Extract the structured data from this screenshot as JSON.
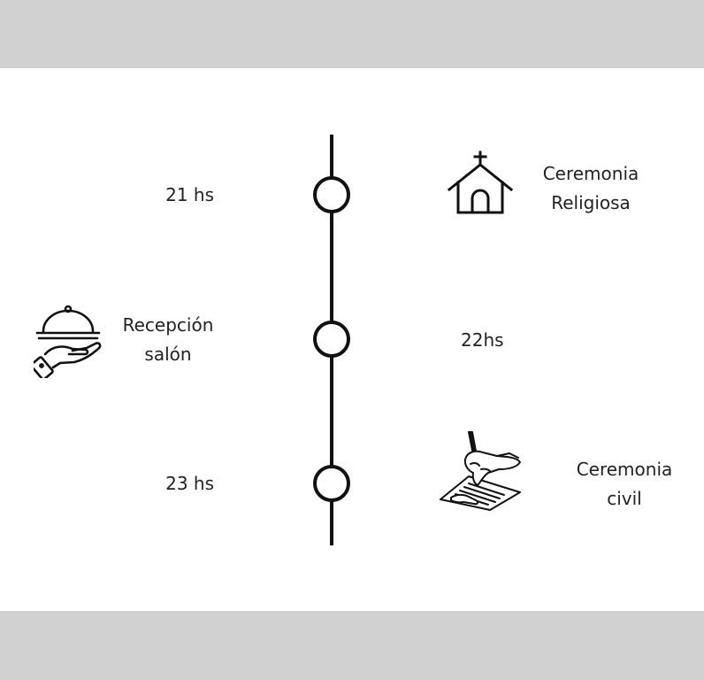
{
  "timeline": {
    "events": [
      {
        "time": "21 hs",
        "title": [
          "Ceremonia",
          "Religiosa"
        ],
        "icon": "church-icon"
      },
      {
        "time": "22hs",
        "title": [
          "Recepción",
          "salón"
        ],
        "icon": "serving-cloche-hand-icon"
      },
      {
        "time": "23 hs",
        "title": [
          "Ceremonia",
          "civil"
        ],
        "icon": "hand-signing-document-icon"
      }
    ]
  },
  "colors": {
    "band": "#d1d1d1",
    "background": "#ffffff",
    "line": "#111111",
    "text": "#222222"
  }
}
